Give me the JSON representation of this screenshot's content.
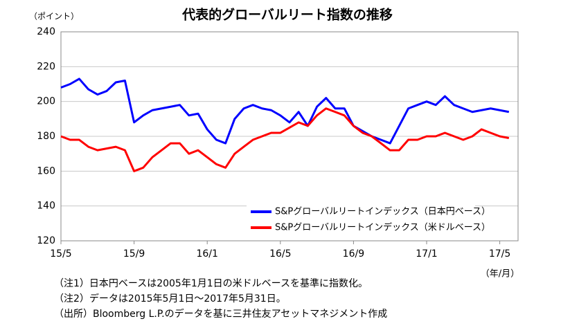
{
  "chart_data": {
    "type": "line",
    "title": "代表的グローバルリート指数の推移",
    "y_label": "（ポイント）",
    "x_label": "（年/月）",
    "categories": [
      "15/5",
      null,
      null,
      null,
      null,
      null,
      null,
      null,
      "15/9",
      null,
      null,
      null,
      null,
      null,
      null,
      null,
      "16/1",
      null,
      null,
      null,
      null,
      null,
      null,
      null,
      "16/5",
      null,
      null,
      null,
      null,
      null,
      null,
      null,
      "16/9",
      null,
      null,
      null,
      null,
      null,
      null,
      null,
      "17/1",
      null,
      null,
      null,
      null,
      null,
      null,
      null,
      "17/5",
      null
    ],
    "series": [
      {
        "name": "S&Pグローバルリートインデックス（日本円ベース）",
        "color": "#0000ff",
        "values": [
          208,
          210,
          213,
          207,
          204,
          206,
          211,
          212,
          188,
          192,
          195,
          196,
          197,
          198,
          192,
          193,
          184,
          178,
          176,
          190,
          196,
          198,
          196,
          195,
          192,
          188,
          194,
          186,
          197,
          202,
          196,
          196,
          186,
          183,
          180,
          178,
          176,
          186,
          196,
          198,
          200,
          198,
          203,
          198,
          196,
          194,
          195,
          196,
          195,
          194
        ]
      },
      {
        "name": "S&Pグローバルリートインデックス（米ドルベース）",
        "color": "#ff0000",
        "values": [
          180,
          178,
          178,
          174,
          172,
          173,
          174,
          172,
          160,
          162,
          168,
          172,
          176,
          176,
          170,
          172,
          168,
          164,
          162,
          170,
          174,
          178,
          180,
          182,
          182,
          185,
          188,
          186,
          192,
          196,
          194,
          192,
          186,
          182,
          180,
          176,
          172,
          172,
          178,
          178,
          180,
          180,
          182,
          180,
          178,
          180,
          184,
          182,
          180,
          179
        ]
      }
    ],
    "ylim": [
      120,
      240
    ],
    "yticks": [
      120,
      140,
      160,
      180,
      200,
      220,
      240
    ],
    "grid": true,
    "notes": [
      "（注1）日本円ベースは2005年1月1日の米ドルベースを基準に指数化。",
      "（注2）データは2015年5月1日～2017年5月31日。",
      "（出所）Bloomberg L.P.のデータを基に三井住友アセットマネジメント作成"
    ]
  }
}
